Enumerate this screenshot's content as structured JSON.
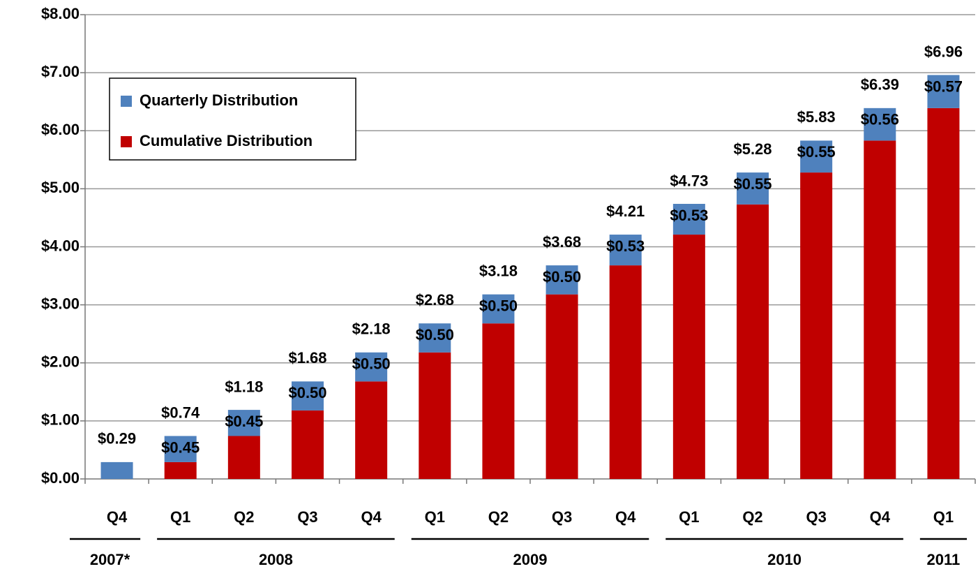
{
  "chart_data": {
    "type": "stacked_bar",
    "categories": [
      "Q4",
      "Q1",
      "Q2",
      "Q3",
      "Q4",
      "Q1",
      "Q2",
      "Q3",
      "Q4",
      "Q1",
      "Q2",
      "Q3",
      "Q4",
      "Q1"
    ],
    "groups": [
      {
        "label": "2007*",
        "span": 1
      },
      {
        "label": "2008",
        "span": 4
      },
      {
        "label": "2009",
        "span": 4
      },
      {
        "label": "2010",
        "span": 4
      },
      {
        "label": "2011",
        "span": 1
      }
    ],
    "series": [
      {
        "name": "Cumulative Distribution",
        "color": "#c00000",
        "values": [
          null,
          0.29,
          0.74,
          1.18,
          1.68,
          2.18,
          2.68,
          3.18,
          3.68,
          4.21,
          4.73,
          5.28,
          5.83,
          6.39
        ]
      },
      {
        "name": "Quarterly Distribution",
        "color": "#4f81bd",
        "values": [
          0.29,
          0.45,
          0.45,
          0.5,
          0.5,
          0.5,
          0.5,
          0.5,
          0.53,
          0.53,
          0.55,
          0.55,
          0.56,
          0.57
        ],
        "value_labels": [
          null,
          "$0.45",
          "$0.45",
          "$0.50",
          "$0.50",
          "$0.50",
          "$0.50",
          "$0.50",
          "$0.53",
          "$0.53",
          "$0.55",
          "$0.55",
          "$0.56",
          "$0.57"
        ]
      }
    ],
    "totals": [
      0.29,
      0.74,
      1.18,
      1.68,
      2.18,
      2.68,
      3.18,
      3.68,
      4.21,
      4.73,
      5.28,
      5.83,
      6.39,
      6.96
    ],
    "total_labels": [
      "$0.29",
      "$0.74",
      "$1.18",
      "$1.68",
      "$2.18",
      "$2.68",
      "$3.18",
      "$3.68",
      "$4.21",
      "$4.73",
      "$5.28",
      "$5.83",
      "$6.39",
      "$6.96"
    ],
    "ylim": [
      0,
      8
    ],
    "yticks": [
      {
        "value": 0,
        "label": "$0.00"
      },
      {
        "value": 1,
        "label": "$1.00"
      },
      {
        "value": 2,
        "label": "$2.00"
      },
      {
        "value": 3,
        "label": "$3.00"
      },
      {
        "value": 4,
        "label": "$4.00"
      },
      {
        "value": 5,
        "label": "$5.00"
      },
      {
        "value": 6,
        "label": "$6.00"
      },
      {
        "value": 7,
        "label": "$7.00"
      },
      {
        "value": 8,
        "label": "$8.00"
      }
    ],
    "grid": true,
    "legend": "upper left"
  }
}
